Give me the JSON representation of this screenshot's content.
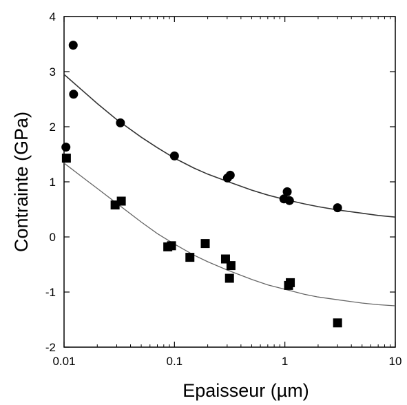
{
  "chart_data": {
    "type": "scatter",
    "title": "",
    "xlabel": "Epaisseur (µm)",
    "ylabel": "Contrainte (GPa)",
    "xscale": "log",
    "xlim": [
      0.01,
      10
    ],
    "ylim": [
      -2,
      4
    ],
    "xticks": [
      {
        "value": 0.01,
        "label": "0.01"
      },
      {
        "value": 0.1,
        "label": "0.1"
      },
      {
        "value": 1,
        "label": "1"
      },
      {
        "value": 10,
        "label": "10"
      }
    ],
    "yticks": [
      {
        "value": -2,
        "label": "-2"
      },
      {
        "value": -1,
        "label": "-1"
      },
      {
        "value": 0,
        "label": "0"
      },
      {
        "value": 1,
        "label": "1"
      },
      {
        "value": 2,
        "label": "2"
      },
      {
        "value": 3,
        "label": "3"
      },
      {
        "value": 4,
        "label": "4"
      }
    ],
    "grid": false,
    "legend": "none",
    "series": [
      {
        "marker": "circle",
        "color": "#000000",
        "points": [
          {
            "x": 0.0104,
            "y": 1.63
          },
          {
            "x": 0.0121,
            "y": 3.48
          },
          {
            "x": 0.0122,
            "y": 2.59
          },
          {
            "x": 0.0324,
            "y": 2.07
          },
          {
            "x": 0.1,
            "y": 1.47
          },
          {
            "x": 0.302,
            "y": 1.07
          },
          {
            "x": 0.32,
            "y": 1.12
          },
          {
            "x": 0.98,
            "y": 0.69
          },
          {
            "x": 1.05,
            "y": 0.82
          },
          {
            "x": 1.1,
            "y": 0.66
          },
          {
            "x": 3.0,
            "y": 0.53
          }
        ],
        "fit_curve": [
          {
            "x": 0.01,
            "y": 2.95
          },
          {
            "x": 0.02,
            "y": 2.42
          },
          {
            "x": 0.03,
            "y": 2.13
          },
          {
            "x": 0.05,
            "y": 1.81
          },
          {
            "x": 0.07,
            "y": 1.62
          },
          {
            "x": 0.1,
            "y": 1.43
          },
          {
            "x": 0.15,
            "y": 1.25
          },
          {
            "x": 0.2,
            "y": 1.14
          },
          {
            "x": 0.3,
            "y": 1.01
          },
          {
            "x": 0.5,
            "y": 0.85
          },
          {
            "x": 0.7,
            "y": 0.76
          },
          {
            "x": 1,
            "y": 0.68
          },
          {
            "x": 1.5,
            "y": 0.6
          },
          {
            "x": 2,
            "y": 0.55
          },
          {
            "x": 3,
            "y": 0.49
          },
          {
            "x": 5,
            "y": 0.43
          },
          {
            "x": 7,
            "y": 0.39
          },
          {
            "x": 10,
            "y": 0.36
          }
        ]
      },
      {
        "marker": "square",
        "color": "#000000",
        "points": [
          {
            "x": 0.0105,
            "y": 1.43
          },
          {
            "x": 0.029,
            "y": 0.58
          },
          {
            "x": 0.033,
            "y": 0.65
          },
          {
            "x": 0.087,
            "y": -0.18
          },
          {
            "x": 0.094,
            "y": -0.16
          },
          {
            "x": 0.138,
            "y": -0.37
          },
          {
            "x": 0.19,
            "y": -0.12
          },
          {
            "x": 0.29,
            "y": -0.4
          },
          {
            "x": 0.315,
            "y": -0.75
          },
          {
            "x": 0.325,
            "y": -0.52
          },
          {
            "x": 1.08,
            "y": -0.88
          },
          {
            "x": 1.12,
            "y": -0.83
          },
          {
            "x": 3.0,
            "y": -1.56
          }
        ],
        "fit_curve": [
          {
            "x": 0.01,
            "y": 1.34
          },
          {
            "x": 0.015,
            "y": 1.07
          },
          {
            "x": 0.02,
            "y": 0.88
          },
          {
            "x": 0.03,
            "y": 0.61
          },
          {
            "x": 0.05,
            "y": 0.27
          },
          {
            "x": 0.07,
            "y": 0.06
          },
          {
            "x": 0.1,
            "y": -0.13
          },
          {
            "x": 0.15,
            "y": -0.33
          },
          {
            "x": 0.2,
            "y": -0.45
          },
          {
            "x": 0.3,
            "y": -0.6
          },
          {
            "x": 0.5,
            "y": -0.77
          },
          {
            "x": 0.7,
            "y": -0.87
          },
          {
            "x": 1,
            "y": -0.95
          },
          {
            "x": 1.5,
            "y": -1.04
          },
          {
            "x": 2,
            "y": -1.09
          },
          {
            "x": 3,
            "y": -1.14
          },
          {
            "x": 5,
            "y": -1.2
          },
          {
            "x": 7,
            "y": -1.23
          },
          {
            "x": 10,
            "y": -1.25
          }
        ]
      }
    ]
  }
}
